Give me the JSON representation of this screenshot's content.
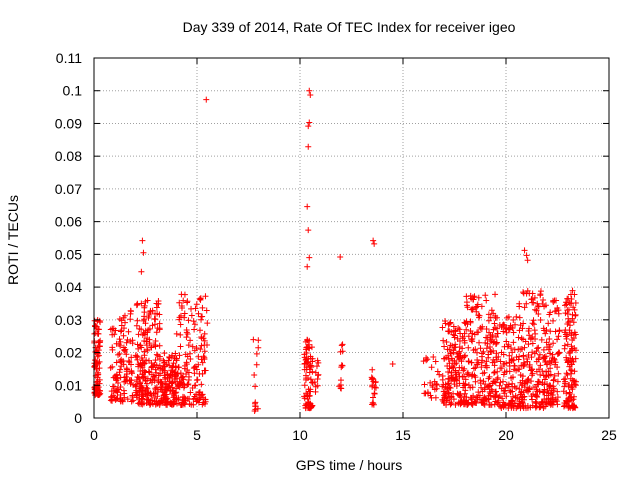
{
  "chart_data": {
    "type": "scatter",
    "title": "Day 339 of 2014, Rate Of TEC Index for receiver igeo",
    "xlabel": "GPS time / hours",
    "ylabel": "ROTI / TECUs",
    "xlim": [
      0,
      25
    ],
    "ylim": [
      0,
      0.11
    ],
    "x_ticks": [
      "0",
      "5",
      "10",
      "15",
      "20",
      "25"
    ],
    "y_ticks": [
      "0",
      "0.01",
      "0.02",
      "0.03",
      "0.04",
      "0.05",
      "0.06",
      "0.07",
      "0.08",
      "0.09",
      "0.1",
      "0.11"
    ],
    "grid": true,
    "marker": "+",
    "marker_color": "#ff0000",
    "series": [
      {
        "name": "ROTI",
        "clusters": [
          {
            "x": [
              0.0,
              0.3
            ],
            "y": [
              0.007,
              0.03
            ],
            "n": 90
          },
          {
            "x": [
              0.8,
              1.9
            ],
            "y": [
              0.005,
              0.033
            ],
            "n": 120
          },
          {
            "x": [
              2.0,
              3.2
            ],
            "y": [
              0.004,
              0.036
            ],
            "n": 210
          },
          {
            "x": [
              3.2,
              4.0
            ],
            "y": [
              0.004,
              0.02
            ],
            "n": 130
          },
          {
            "x": [
              4.0,
              5.5
            ],
            "y": [
              0.004,
              0.038
            ],
            "n": 170
          },
          {
            "x": [
              7.7,
              8.0
            ],
            "y": [
              0.002,
              0.024
            ],
            "n": 14
          },
          {
            "x": [
              10.2,
              10.6
            ],
            "y": [
              0.003,
              0.025
            ],
            "n": 80
          },
          {
            "x": [
              10.6,
              10.9
            ],
            "y": [
              0.008,
              0.02
            ],
            "n": 15
          },
          {
            "x": [
              11.9,
              12.1
            ],
            "y": [
              0.009,
              0.026
            ],
            "n": 12
          },
          {
            "x": [
              13.4,
              13.7
            ],
            "y": [
              0.004,
              0.016
            ],
            "n": 18
          },
          {
            "x": [
              16.0,
              16.8
            ],
            "y": [
              0.006,
              0.02
            ],
            "n": 25
          },
          {
            "x": [
              16.9,
              18.0
            ],
            "y": [
              0.004,
              0.03
            ],
            "n": 160
          },
          {
            "x": [
              18.0,
              19.5
            ],
            "y": [
              0.004,
              0.038
            ],
            "n": 200
          },
          {
            "x": [
              19.5,
              20.6
            ],
            "y": [
              0.003,
              0.031
            ],
            "n": 130
          },
          {
            "x": [
              20.6,
              21.9
            ],
            "y": [
              0.003,
              0.039
            ],
            "n": 190
          },
          {
            "x": [
              21.9,
              22.6
            ],
            "y": [
              0.004,
              0.036
            ],
            "n": 100
          },
          {
            "x": [
              22.8,
              23.4
            ],
            "y": [
              0.003,
              0.039
            ],
            "n": 130
          }
        ],
        "points": [
          [
            2.35,
            0.0542
          ],
          [
            2.4,
            0.0505
          ],
          [
            2.3,
            0.0447
          ],
          [
            2.5,
            0.0355
          ],
          [
            5.45,
            0.0973
          ],
          [
            5.5,
            0.029
          ],
          [
            10.45,
            0.1
          ],
          [
            10.5,
            0.0987
          ],
          [
            10.45,
            0.0903
          ],
          [
            10.4,
            0.0892
          ],
          [
            10.4,
            0.0829
          ],
          [
            10.35,
            0.0646
          ],
          [
            10.4,
            0.0574
          ],
          [
            10.45,
            0.049
          ],
          [
            10.35,
            0.0462
          ],
          [
            11.95,
            0.0492
          ],
          [
            13.55,
            0.0542
          ],
          [
            13.6,
            0.0532
          ],
          [
            14.5,
            0.0165
          ],
          [
            20.9,
            0.0512
          ],
          [
            21.0,
            0.0497
          ],
          [
            21.05,
            0.0482
          ],
          [
            21.0,
            0.038
          ]
        ]
      }
    ]
  }
}
